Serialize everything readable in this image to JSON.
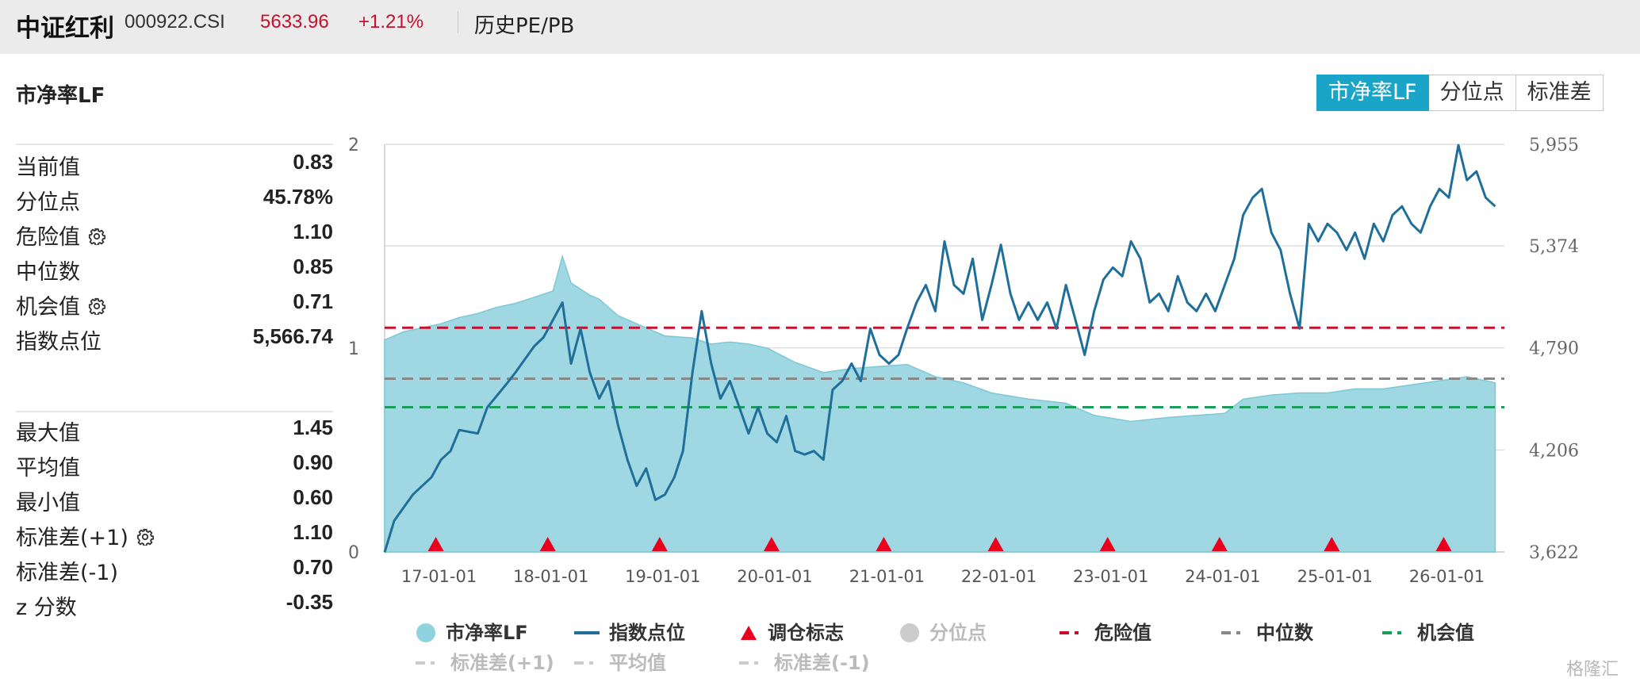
{
  "header": {
    "name": "中证红利",
    "code": "000922.CSI",
    "price": "5633.96",
    "change": "+1.21%",
    "page": "历史PE/PB"
  },
  "section_title": "市净率LF",
  "tabs": [
    {
      "label": "市净率LF",
      "active": true
    },
    {
      "label": "分位点",
      "active": false
    },
    {
      "label": "标准差",
      "active": false
    }
  ],
  "stats_top": [
    {
      "label": "当前值",
      "value": "0.83",
      "gear": false
    },
    {
      "label": "分位点",
      "value": "45.78%",
      "gear": false
    },
    {
      "label": "危险值",
      "value": "1.10",
      "gear": true
    },
    {
      "label": "中位数",
      "value": "0.85",
      "gear": false
    },
    {
      "label": "机会值",
      "value": "0.71",
      "gear": true
    },
    {
      "label": "指数点位",
      "value": "5,566.74",
      "gear": false
    }
  ],
  "stats_bottom": [
    {
      "label": "最大值",
      "value": "1.45",
      "gear": false
    },
    {
      "label": "平均值",
      "value": "0.90",
      "gear": false
    },
    {
      "label": "最小值",
      "value": "0.60",
      "gear": false
    },
    {
      "label": "标准差(+1)",
      "value": "1.10",
      "gear": true
    },
    {
      "label": "标准差(-1)",
      "value": "0.70",
      "gear": false
    },
    {
      "label": "z 分数",
      "value": "-0.35",
      "gear": false
    }
  ],
  "legend": [
    {
      "label": "市净率LF",
      "type": "circle",
      "color": "#8ed3de",
      "dim": false
    },
    {
      "label": "指数点位",
      "type": "line",
      "color": "#1f6f9a",
      "dim": false
    },
    {
      "label": "调仓标志",
      "type": "triangle",
      "color": "#e8001c",
      "dim": false
    },
    {
      "label": "分位点",
      "type": "circle",
      "color": "#cccccc",
      "dim": true
    },
    {
      "label": "危险值",
      "type": "dash",
      "color": "#c8102e",
      "dim": false
    },
    {
      "label": "中位数",
      "type": "dash",
      "color": "#888888",
      "dim": false
    },
    {
      "label": "机会值",
      "type": "dash",
      "color": "#1a9c5b",
      "dim": false
    },
    {
      "label": "标准差(+1)",
      "type": "dash",
      "color": "#cccccc",
      "dim": true
    },
    {
      "label": "平均值",
      "type": "dash",
      "color": "#cccccc",
      "dim": true
    },
    {
      "label": "标准差(-1)",
      "type": "dash",
      "color": "#cccccc",
      "dim": true
    }
  ],
  "watermark": "格隆汇",
  "chart_data": {
    "type": "area",
    "title": "",
    "x_tick_labels": [
      "17-01-01",
      "18-01-01",
      "19-01-01",
      "20-01-01",
      "21-01-01",
      "22-01-01",
      "23-01-01",
      "24-01-01",
      "25-01-01",
      "26-01-01"
    ],
    "y_left": {
      "range": [
        0,
        2
      ],
      "tick_labels": [
        "0",
        "1",
        "2"
      ]
    },
    "y_right": {
      "range": [
        3622,
        5955
      ],
      "tick_labels": [
        "3,622",
        "4,206",
        "4,790",
        "5,374",
        "5,955"
      ]
    },
    "x_range": [
      "2016-07-01",
      "2026-07-01"
    ],
    "series": [
      {
        "name": "市净率LF",
        "kind": "area",
        "axis": "left",
        "color": "#9fd8e2",
        "points": [
          [
            "2016-07-01",
            1.04
          ],
          [
            "2016-09-01",
            1.08
          ],
          [
            "2016-11-01",
            1.1
          ],
          [
            "2017-01-01",
            1.12
          ],
          [
            "2017-03-01",
            1.15
          ],
          [
            "2017-05-01",
            1.17
          ],
          [
            "2017-07-01",
            1.2
          ],
          [
            "2017-09-01",
            1.22
          ],
          [
            "2017-11-01",
            1.25
          ],
          [
            "2018-01-01",
            1.28
          ],
          [
            "2018-02-01",
            1.45
          ],
          [
            "2018-03-01",
            1.32
          ],
          [
            "2018-05-01",
            1.26
          ],
          [
            "2018-06-01",
            1.24
          ],
          [
            "2018-08-01",
            1.16
          ],
          [
            "2018-10-01",
            1.12
          ],
          [
            "2018-12-01",
            1.08
          ],
          [
            "2019-01-01",
            1.06
          ],
          [
            "2019-04-01",
            1.05
          ],
          [
            "2019-06-01",
            1.02
          ],
          [
            "2019-08-01",
            1.03
          ],
          [
            "2019-10-01",
            1.02
          ],
          [
            "2019-12-01",
            1.0
          ],
          [
            "2020-03-01",
            0.93
          ],
          [
            "2020-06-01",
            0.88
          ],
          [
            "2020-09-01",
            0.9
          ],
          [
            "2020-12-01",
            0.91
          ],
          [
            "2021-03-01",
            0.92
          ],
          [
            "2021-06-01",
            0.86
          ],
          [
            "2021-09-01",
            0.83
          ],
          [
            "2021-12-01",
            0.78
          ],
          [
            "2022-04-01",
            0.75
          ],
          [
            "2022-08-01",
            0.73
          ],
          [
            "2022-11-01",
            0.67
          ],
          [
            "2023-03-01",
            0.64
          ],
          [
            "2023-07-01",
            0.66
          ],
          [
            "2023-10-01",
            0.67
          ],
          [
            "2024-01-01",
            0.68
          ],
          [
            "2024-03-01",
            0.75
          ],
          [
            "2024-06-01",
            0.77
          ],
          [
            "2024-09-01",
            0.78
          ],
          [
            "2024-12-01",
            0.78
          ],
          [
            "2025-03-01",
            0.8
          ],
          [
            "2025-06-01",
            0.8
          ],
          [
            "2025-09-01",
            0.82
          ],
          [
            "2025-12-01",
            0.84
          ],
          [
            "2026-03-01",
            0.86
          ],
          [
            "2026-06-01",
            0.83
          ]
        ]
      },
      {
        "name": "指数点位",
        "kind": "line",
        "axis": "right",
        "color": "#1f6f9a",
        "points": [
          [
            "2016-07-01",
            3620
          ],
          [
            "2016-08-01",
            3800
          ],
          [
            "2016-10-01",
            3950
          ],
          [
            "2016-12-01",
            4050
          ],
          [
            "2017-01-01",
            4150
          ],
          [
            "2017-02-01",
            4200
          ],
          [
            "2017-03-01",
            4320
          ],
          [
            "2017-05-01",
            4300
          ],
          [
            "2017-06-01",
            4450
          ],
          [
            "2017-08-01",
            4580
          ],
          [
            "2017-09-01",
            4650
          ],
          [
            "2017-11-01",
            4800
          ],
          [
            "2017-12-01",
            4850
          ],
          [
            "2018-01-01",
            4950
          ],
          [
            "2018-02-01",
            5050
          ],
          [
            "2018-03-01",
            4700
          ],
          [
            "2018-04-01",
            4900
          ],
          [
            "2018-05-01",
            4650
          ],
          [
            "2018-06-01",
            4500
          ],
          [
            "2018-07-01",
            4600
          ],
          [
            "2018-08-01",
            4350
          ],
          [
            "2018-09-01",
            4150
          ],
          [
            "2018-10-01",
            4000
          ],
          [
            "2018-11-01",
            4100
          ],
          [
            "2018-12-01",
            3920
          ],
          [
            "2019-01-01",
            3950
          ],
          [
            "2019-02-01",
            4050
          ],
          [
            "2019-03-01",
            4200
          ],
          [
            "2019-04-01",
            4650
          ],
          [
            "2019-05-01",
            5000
          ],
          [
            "2019-06-01",
            4700
          ],
          [
            "2019-07-01",
            4500
          ],
          [
            "2019-08-01",
            4600
          ],
          [
            "2019-09-01",
            4450
          ],
          [
            "2019-10-01",
            4300
          ],
          [
            "2019-11-01",
            4450
          ],
          [
            "2019-12-01",
            4300
          ],
          [
            "2020-01-01",
            4250
          ],
          [
            "2020-02-01",
            4400
          ],
          [
            "2020-03-01",
            4200
          ],
          [
            "2020-04-01",
            4180
          ],
          [
            "2020-05-01",
            4200
          ],
          [
            "2020-06-01",
            4150
          ],
          [
            "2020-07-01",
            4550
          ],
          [
            "2020-08-01",
            4600
          ],
          [
            "2020-09-01",
            4700
          ],
          [
            "2020-10-01",
            4600
          ],
          [
            "2020-11-01",
            4900
          ],
          [
            "2020-12-01",
            4750
          ],
          [
            "2021-01-01",
            4700
          ],
          [
            "2021-02-01",
            4750
          ],
          [
            "2021-03-01",
            4900
          ],
          [
            "2021-04-01",
            5050
          ],
          [
            "2021-05-01",
            5150
          ],
          [
            "2021-06-01",
            5000
          ],
          [
            "2021-07-01",
            5400
          ],
          [
            "2021-08-01",
            5150
          ],
          [
            "2021-09-01",
            5100
          ],
          [
            "2021-10-01",
            5300
          ],
          [
            "2021-11-01",
            4950
          ],
          [
            "2021-12-01",
            5150
          ],
          [
            "2022-01-01",
            5380
          ],
          [
            "2022-02-01",
            5100
          ],
          [
            "2022-03-01",
            4950
          ],
          [
            "2022-04-01",
            5050
          ],
          [
            "2022-05-01",
            4950
          ],
          [
            "2022-06-01",
            5050
          ],
          [
            "2022-07-01",
            4900
          ],
          [
            "2022-08-01",
            5150
          ],
          [
            "2022-09-01",
            4950
          ],
          [
            "2022-10-01",
            4750
          ],
          [
            "2022-11-01",
            5000
          ],
          [
            "2022-12-01",
            5180
          ],
          [
            "2023-01-01",
            5250
          ],
          [
            "2023-02-01",
            5200
          ],
          [
            "2023-03-01",
            5400
          ],
          [
            "2023-04-01",
            5300
          ],
          [
            "2023-05-01",
            5050
          ],
          [
            "2023-06-01",
            5100
          ],
          [
            "2023-07-01",
            5000
          ],
          [
            "2023-08-01",
            5200
          ],
          [
            "2023-09-01",
            5050
          ],
          [
            "2023-10-01",
            5000
          ],
          [
            "2023-11-01",
            5100
          ],
          [
            "2023-12-01",
            5000
          ],
          [
            "2024-01-01",
            5150
          ],
          [
            "2024-02-01",
            5300
          ],
          [
            "2024-03-01",
            5550
          ],
          [
            "2024-04-01",
            5650
          ],
          [
            "2024-05-01",
            5700
          ],
          [
            "2024-06-01",
            5450
          ],
          [
            "2024-07-01",
            5350
          ],
          [
            "2024-08-01",
            5100
          ],
          [
            "2024-09-01",
            4900
          ],
          [
            "2024-10-01",
            5500
          ],
          [
            "2024-11-01",
            5400
          ],
          [
            "2024-12-01",
            5500
          ],
          [
            "2025-01-01",
            5450
          ],
          [
            "2025-02-01",
            5350
          ],
          [
            "2025-03-01",
            5450
          ],
          [
            "2025-04-01",
            5300
          ],
          [
            "2025-05-01",
            5500
          ],
          [
            "2025-06-01",
            5400
          ],
          [
            "2025-07-01",
            5550
          ],
          [
            "2025-08-01",
            5600
          ],
          [
            "2025-09-01",
            5500
          ],
          [
            "2025-10-01",
            5450
          ],
          [
            "2025-11-01",
            5600
          ],
          [
            "2025-12-01",
            5700
          ],
          [
            "2026-01-01",
            5650
          ],
          [
            "2026-02-01",
            5950
          ],
          [
            "2026-03-01",
            5750
          ],
          [
            "2026-04-01",
            5800
          ],
          [
            "2026-05-01",
            5650
          ],
          [
            "2026-06-01",
            5600
          ]
        ]
      }
    ],
    "reference_lines": [
      {
        "name": "危险值",
        "value": 1.1,
        "color": "#c8102e"
      },
      {
        "name": "中位数",
        "value": 0.85,
        "color": "#888888"
      },
      {
        "name": "机会值",
        "value": 0.71,
        "color": "#1a9c5b"
      }
    ],
    "rebalance_markers": [
      "2016-12-15",
      "2017-12-15",
      "2018-12-15",
      "2019-12-15",
      "2020-12-15",
      "2021-12-15",
      "2022-12-15",
      "2023-12-15",
      "2024-12-15",
      "2025-12-15"
    ],
    "grid": true
  }
}
